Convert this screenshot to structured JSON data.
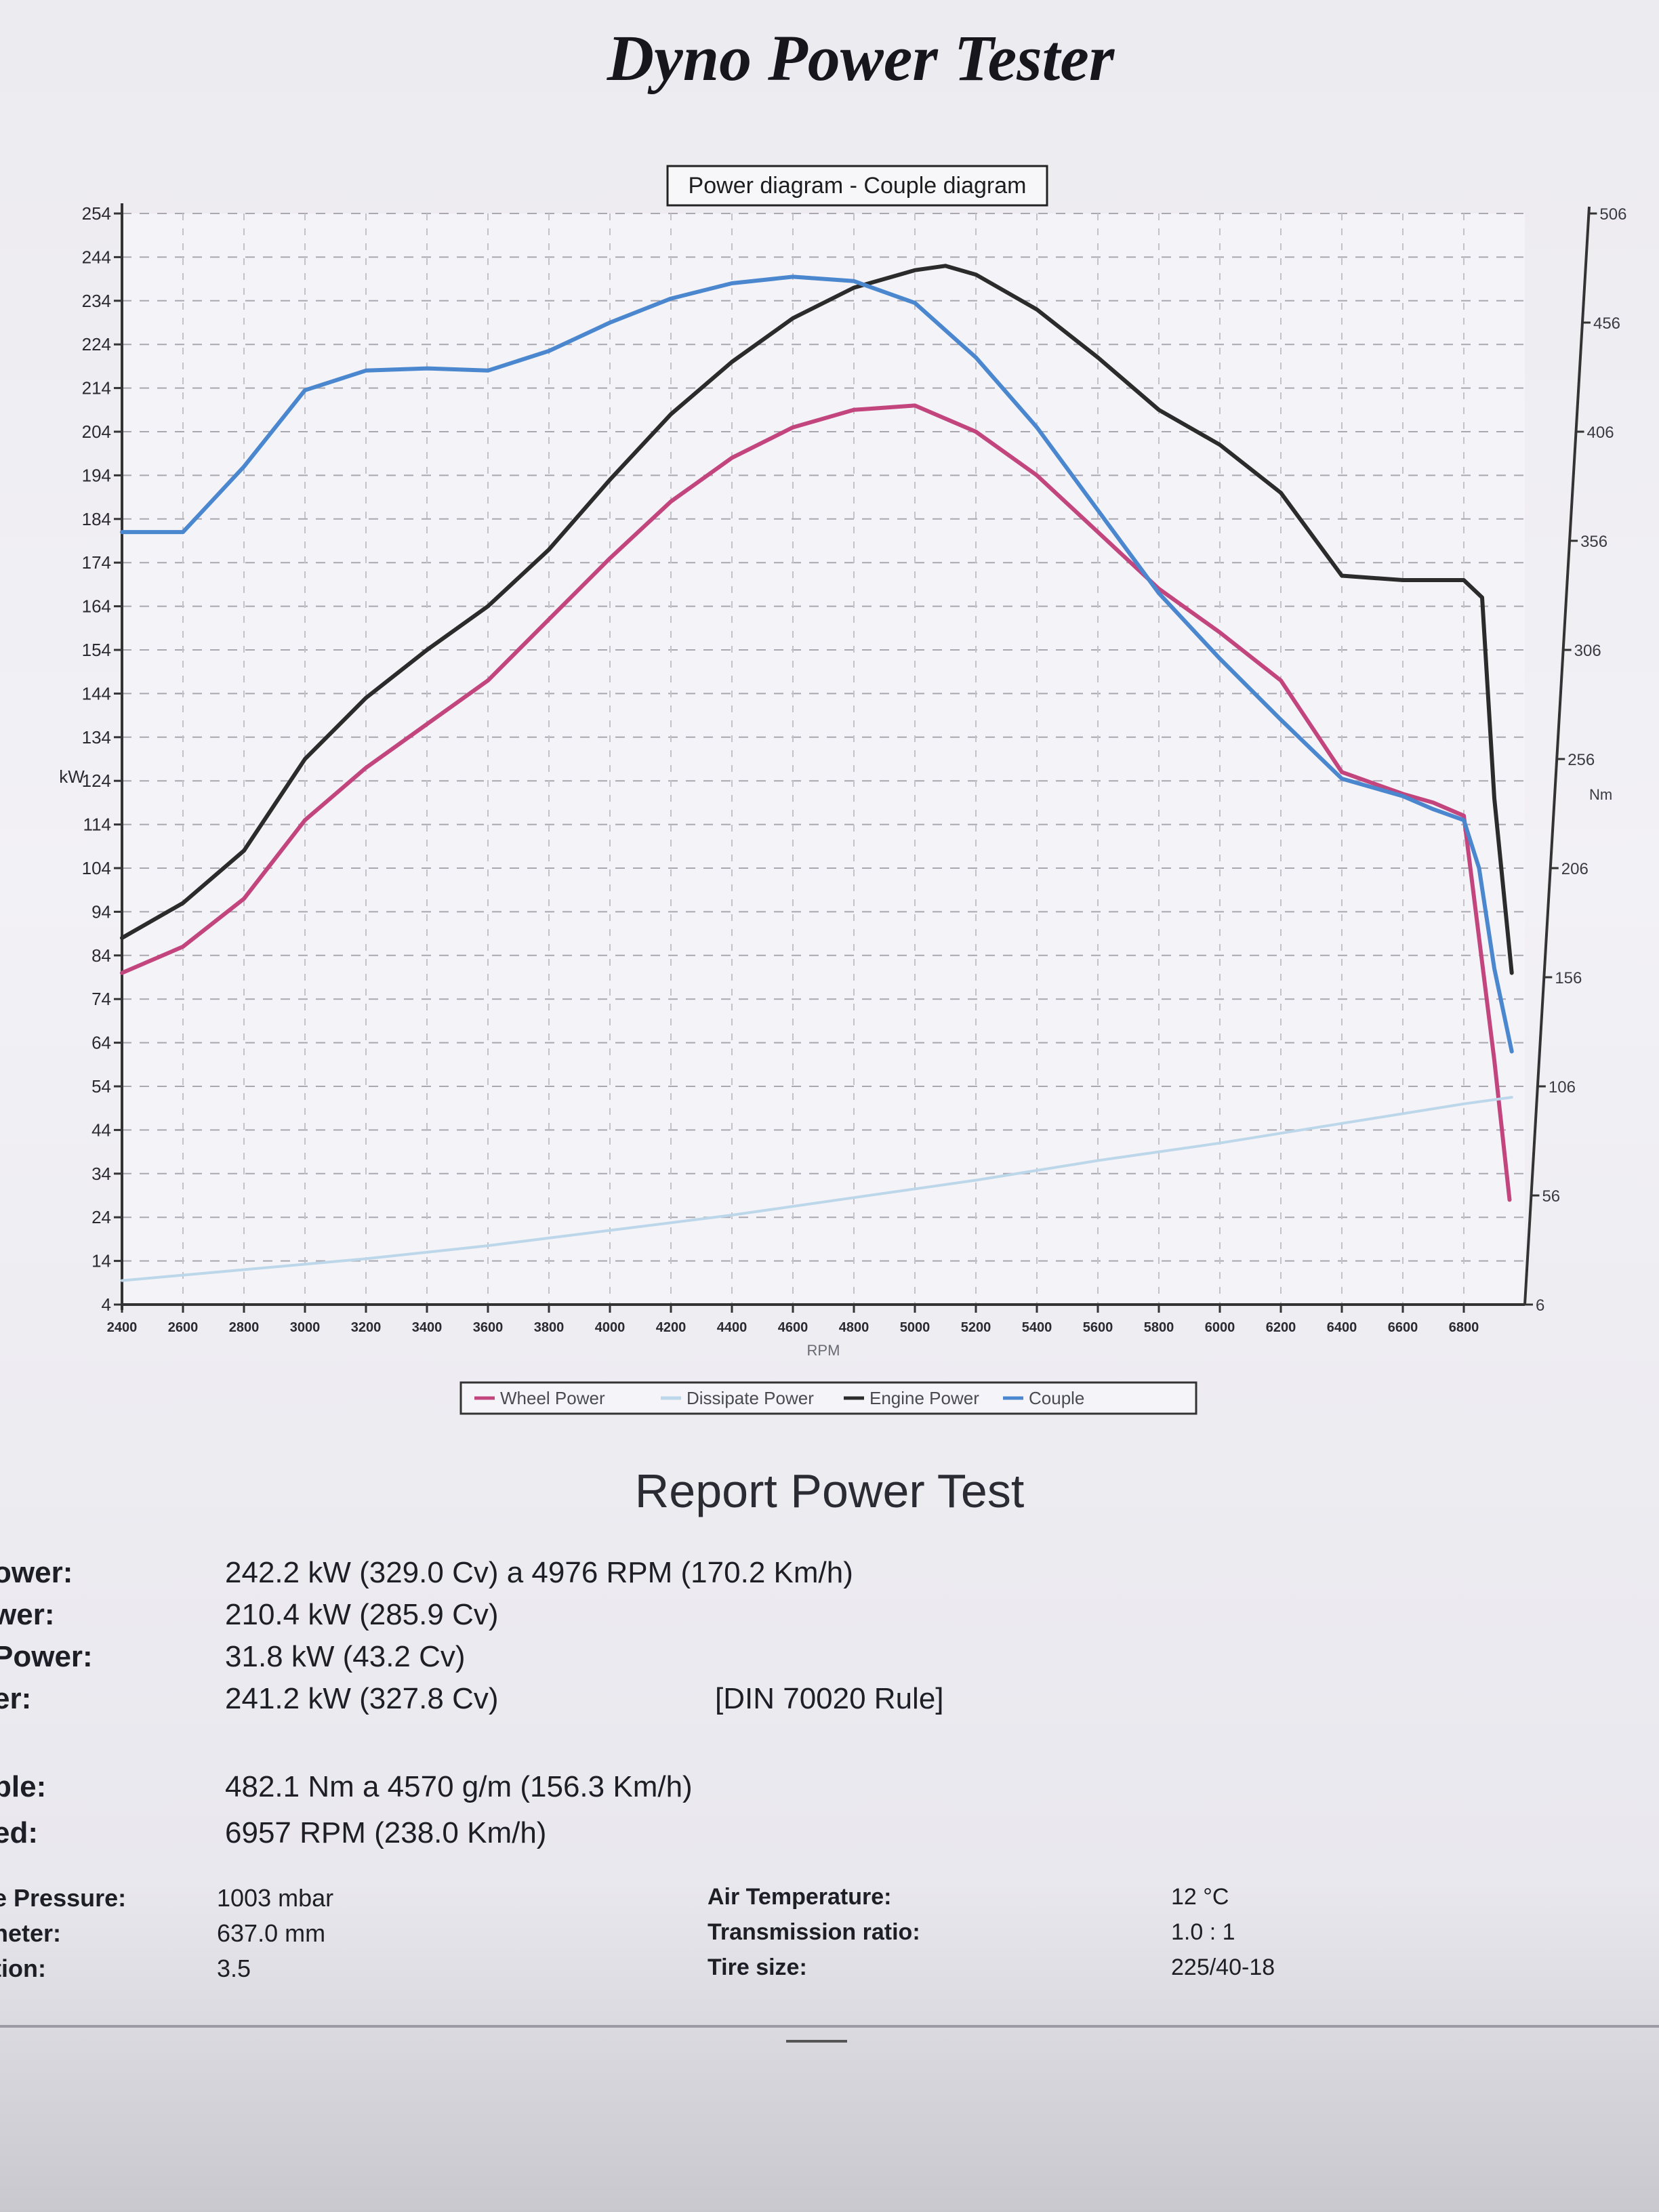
{
  "page": {
    "title": "Dyno Power Tester"
  },
  "chart_data": {
    "type": "line",
    "title": "Power diagram - Couple diagram",
    "xlabel": "RPM",
    "ylabel_left": "kW",
    "ylabel_right": "Nm",
    "xlim": [
      2400,
      7000
    ],
    "ylim_left": [
      4,
      254
    ],
    "ylim_right": [
      6,
      506
    ],
    "x_ticks": [
      2400,
      2600,
      2800,
      3000,
      3200,
      3400,
      3600,
      3800,
      4000,
      4200,
      4400,
      4600,
      4800,
      5000,
      5200,
      5400,
      5600,
      5800,
      6000,
      6200,
      6400,
      6600,
      6800
    ],
    "y_ticks_left": [
      4,
      14,
      24,
      34,
      44,
      54,
      64,
      74,
      84,
      94,
      104,
      114,
      124,
      134,
      144,
      154,
      164,
      174,
      184,
      194,
      204,
      214,
      224,
      234,
      244,
      254
    ],
    "y_ticks_right": [
      6,
      56,
      106,
      156,
      206,
      256,
      306,
      356,
      406,
      456,
      506
    ],
    "grid": true,
    "legend_position": "bottom",
    "series": [
      {
        "name": "Wheel Power",
        "axis": "left",
        "color": "#c2457e",
        "x": [
          2400,
          2600,
          2800,
          3000,
          3200,
          3400,
          3600,
          3800,
          4000,
          4200,
          4400,
          4600,
          4800,
          5000,
          5200,
          5400,
          5600,
          5800,
          6000,
          6200,
          6400,
          6600,
          6700,
          6800,
          6900,
          6950
        ],
        "y": [
          80,
          86,
          97,
          115,
          127,
          137,
          147,
          161,
          175,
          188,
          198,
          205,
          209,
          210,
          204,
          194,
          181,
          168,
          158,
          147,
          126,
          121,
          119,
          116,
          60,
          28
        ]
      },
      {
        "name": "Dissipate Power",
        "axis": "left",
        "color": "#bcd6ea",
        "x": [
          2400,
          2800,
          3200,
          3600,
          4000,
          4400,
          4800,
          5200,
          5600,
          6000,
          6400,
          6800,
          6957
        ],
        "y": [
          9.5,
          12,
          14.5,
          17.5,
          21,
          24.5,
          28.5,
          32.5,
          37,
          41,
          45.5,
          50,
          51.5
        ]
      },
      {
        "name": "Engine Power",
        "axis": "left",
        "color": "#2b2b2b",
        "x": [
          2400,
          2600,
          2800,
          3000,
          3200,
          3400,
          3600,
          3800,
          4000,
          4200,
          4400,
          4600,
          4800,
          5000,
          5100,
          5200,
          5400,
          5600,
          5800,
          6000,
          6200,
          6400,
          6600,
          6800,
          6860,
          6900,
          6957
        ],
        "y": [
          88,
          96,
          108,
          129,
          143,
          154,
          164,
          177,
          193,
          208,
          220,
          230,
          237,
          241,
          242,
          240,
          232,
          221,
          209,
          201,
          190,
          171,
          170,
          170,
          166,
          120,
          80
        ]
      },
      {
        "name": "Couple",
        "axis": "right",
        "color": "#4a87cf",
        "x": [
          2400,
          2600,
          2800,
          3000,
          3200,
          3400,
          3600,
          3800,
          4000,
          4200,
          4400,
          4600,
          4800,
          5000,
          5200,
          5400,
          5600,
          5800,
          6000,
          6200,
          6400,
          6600,
          6700,
          6800,
          6850,
          6900,
          6957
        ],
        "y": [
          360,
          360,
          390,
          425,
          434,
          435,
          434,
          443,
          456,
          467,
          474,
          477,
          475,
          465,
          440,
          408,
          370,
          332,
          302,
          274,
          247,
          239,
          233,
          228,
          206,
          160,
          122
        ]
      }
    ]
  },
  "report": {
    "title": "Report Power Test",
    "rows": [
      {
        "label": "ower:",
        "value": "242.2 kW (329.0 Cv) a 4976 RPM (170.2 Km/h)"
      },
      {
        "label": "wer:",
        "value": "210.4 kW (285.9 Cv)"
      },
      {
        "label": " Power:",
        "value": "31.8 kW (43.2 Cv)"
      },
      {
        "label": "er:",
        "value": "241.2 kW (327.8 Cv)",
        "note": "[DIN 70020 Rule]"
      },
      {
        "label": "ple:",
        "value": "482.1 Nm a 4570 g/m (156.3 Km/h)"
      },
      {
        "label": "ed:",
        "value": "6957 RPM (238.0 Km/h)"
      }
    ],
    "conditions_left": [
      {
        "label": "e Pressure:",
        "value": "1003 mbar"
      },
      {
        "label": "neter:",
        "value": "637.0 mm"
      },
      {
        "label": "tion:",
        "value": "3.5"
      }
    ],
    "conditions_right": [
      {
        "label": "Air Temperature:",
        "value": "12 °C"
      },
      {
        "label": "Transmission ratio:",
        "value": "1.0 : 1"
      },
      {
        "label": "Tire size:",
        "value": "225/40-18"
      }
    ]
  }
}
